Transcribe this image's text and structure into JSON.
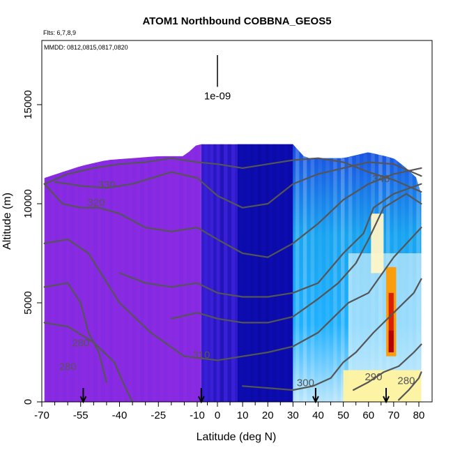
{
  "chart_data": {
    "type": "heatmap",
    "title": "ATOM1 Northbound COBBNA_GEOS5",
    "flights_label": "Flts: 6,7,8,9",
    "dates_label": "MMDD: 0812,0815,0817,0820",
    "xlabel": "Latitude (deg N)",
    "ylabel": "Altitude (m)",
    "xlim": [
      -70,
      82
    ],
    "ylim": [
      0,
      18200
    ],
    "x_scale": "piecewise-linear",
    "x_ticks": [
      {
        "value": -70,
        "label": "-70"
      },
      {
        "value": -55,
        "label": "-55"
      },
      {
        "value": -40,
        "label": "-40"
      },
      {
        "value": -25,
        "label": "-25"
      },
      {
        "value": -10,
        "label": "-10"
      },
      {
        "value": 0,
        "label": "0"
      },
      {
        "value": 10,
        "label": "10"
      },
      {
        "value": 20,
        "label": "20"
      },
      {
        "value": 30,
        "label": "30"
      },
      {
        "value": 40,
        "label": "40"
      },
      {
        "value": 50,
        "label": "50"
      },
      {
        "value": 60,
        "label": "60"
      },
      {
        "value": 70,
        "label": "70"
      },
      {
        "value": 80,
        "label": "80"
      }
    ],
    "y_ticks": [
      {
        "value": 0,
        "label": "0"
      },
      {
        "value": 5000,
        "label": "5000"
      },
      {
        "value": 10000,
        "label": "10000"
      },
      {
        "value": 15000,
        "label": "15000"
      }
    ],
    "scale_bar": {
      "label": "1e-09",
      "x": 0,
      "y_bottom": 15900,
      "y_top": 17500
    },
    "data_ceiling": [
      [
        -69,
        11300
      ],
      [
        -62,
        11600
      ],
      [
        -55,
        11900
      ],
      [
        -45,
        12200
      ],
      [
        -25,
        12400
      ],
      [
        -15,
        12400
      ],
      [
        -10,
        13000
      ],
      [
        0,
        13000
      ],
      [
        10,
        13000
      ],
      [
        20,
        13000
      ],
      [
        30,
        13000
      ],
      [
        35,
        12300
      ],
      [
        50,
        12300
      ],
      [
        60,
        12600
      ],
      [
        70,
        12300
      ],
      [
        75,
        11800
      ],
      [
        80,
        11200
      ],
      [
        81,
        10500
      ]
    ],
    "regions": [
      {
        "name": "southern",
        "from": -69,
        "to": -8,
        "color": "#8a2be2"
      },
      {
        "name": "tropical",
        "from": -8,
        "to": 30,
        "color": "#3a1fd8"
      },
      {
        "name": "tropical-core",
        "from": 8,
        "to": 30,
        "color": "#0c0cb0"
      },
      {
        "name": "northern",
        "from": 30,
        "to": 81,
        "color": "#1aa0ee"
      }
    ],
    "features": [
      {
        "name": "north-pale",
        "x": [
          52,
          81
        ],
        "y": [
          0,
          7500
        ],
        "color": "#cdeefb"
      },
      {
        "name": "near-surface-yellow",
        "x": [
          50,
          81
        ],
        "y": [
          0,
          1600
        ],
        "color": "#fff3a0"
      },
      {
        "name": "upper-pale-patch",
        "x": [
          61,
          66
        ],
        "y": [
          6500,
          9500
        ],
        "color": "#fff6c8"
      },
      {
        "name": "plume-orange",
        "x": [
          67,
          71
        ],
        "y": [
          2300,
          6800
        ],
        "color": "#ff9a00"
      },
      {
        "name": "plume-red",
        "x": [
          68,
          70
        ],
        "y": [
          2500,
          5500
        ],
        "color": "#d61a00"
      },
      {
        "name": "plume-core",
        "x": [
          68,
          70
        ],
        "y": [
          2500,
          3600
        ],
        "color": "#b00000"
      }
    ],
    "contours": [
      {
        "level": "280",
        "label": "280",
        "label_at": [
          -55,
          1600
        ],
        "points": [
          [
            -69,
            4000
          ],
          [
            -60,
            3800
          ],
          [
            -50,
            3000
          ],
          [
            -42,
            2000
          ],
          [
            -38,
            800
          ],
          [
            -35,
            0
          ]
        ]
      },
      {
        "level": "280",
        "label": "280",
        "label_at": [
          -60,
          4000
        ],
        "points": [
          [
            -69,
            5800
          ],
          [
            -60,
            6000
          ],
          [
            -55,
            5000
          ],
          [
            -52,
            3500
          ],
          [
            -48,
            2500
          ],
          [
            -45,
            1000
          ]
        ]
      },
      {
        "level": "310",
        "label": "310",
        "label_at": [
          -8,
          2300
        ],
        "points": [
          [
            -69,
            8000
          ],
          [
            -60,
            8200
          ],
          [
            -52,
            7500
          ],
          [
            -40,
            5000
          ],
          [
            -28,
            3500
          ],
          [
            -15,
            2300
          ],
          [
            0,
            2100
          ],
          [
            10,
            2300
          ],
          [
            20,
            2500
          ],
          [
            30,
            2800
          ],
          [
            40,
            3500
          ],
          [
            48,
            4500
          ],
          [
            52,
            5000
          ],
          [
            60,
            5500
          ],
          [
            70,
            7300
          ],
          [
            81,
            8800
          ]
        ]
      },
      {
        "level": "300",
        "label": "300",
        "label_at": [
          35,
          800
        ],
        "points": [
          [
            -20,
            4200
          ],
          [
            -10,
            4500
          ],
          [
            0,
            4200
          ],
          [
            10,
            4000
          ],
          [
            20,
            4000
          ],
          [
            30,
            4300
          ],
          [
            40,
            5200
          ],
          [
            48,
            6000
          ],
          [
            55,
            7000
          ],
          [
            60,
            8200
          ],
          [
            66,
            9800
          ],
          [
            75,
            10500
          ],
          [
            81,
            10000
          ]
        ]
      },
      {
        "level": "300",
        "label": "300",
        "label_at": [
          35,
          800
        ],
        "points": [
          [
            -40,
            6500
          ],
          [
            -30,
            6000
          ],
          [
            -20,
            5800
          ],
          [
            -10,
            6000
          ],
          [
            0,
            5500
          ],
          [
            10,
            5300
          ],
          [
            20,
            5300
          ],
          [
            30,
            5500
          ],
          [
            40,
            6000
          ],
          [
            50,
            7500
          ],
          [
            58,
            8500
          ],
          [
            62,
            9800
          ],
          [
            70,
            10500
          ],
          [
            81,
            11000
          ]
        ]
      },
      {
        "level": "300",
        "label": "300",
        "label_at": [
          35,
          800
        ],
        "points": [
          [
            10,
            800
          ],
          [
            20,
            700
          ],
          [
            30,
            600
          ],
          [
            38,
            800
          ],
          [
            45,
            1200
          ],
          [
            50,
            2000
          ],
          [
            55,
            2500
          ],
          [
            62,
            3500
          ],
          [
            70,
            4500
          ],
          [
            78,
            5500
          ],
          [
            81,
            6200
          ]
        ]
      },
      {
        "level": "290",
        "label": "290",
        "label_at": [
          62,
          1100
        ],
        "points": [
          [
            54,
            600
          ],
          [
            60,
            1000
          ],
          [
            66,
            1500
          ],
          [
            72,
            1800
          ],
          [
            78,
            2500
          ],
          [
            81,
            2900
          ]
        ]
      },
      {
        "level": "280",
        "label": "280",
        "label_at": [
          75,
          800
        ],
        "points": [
          [
            72,
            100
          ],
          [
            76,
            600
          ],
          [
            80,
            1200
          ],
          [
            81,
            1500
          ]
        ]
      },
      {
        "level": "320",
        "label": "320",
        "label_at": [
          -48,
          9800
        ],
        "points": [
          [
            -69,
            11000
          ],
          [
            -62,
            10000
          ],
          [
            -55,
            9800
          ],
          [
            -48,
            9800
          ],
          [
            -40,
            9500
          ],
          [
            -30,
            8800
          ],
          [
            -20,
            8600
          ],
          [
            -10,
            8800
          ],
          [
            0,
            8200
          ],
          [
            10,
            7500
          ],
          [
            20,
            7300
          ],
          [
            30,
            8000
          ],
          [
            40,
            9000
          ],
          [
            50,
            10200
          ],
          [
            60,
            11000
          ],
          [
            70,
            11500
          ],
          [
            81,
            11800
          ]
        ]
      },
      {
        "level": "330",
        "label": "330",
        "label_at": [
          -45,
          10800
        ],
        "points": [
          [
            -65,
            11100
          ],
          [
            -55,
            10900
          ],
          [
            -45,
            10800
          ],
          [
            -35,
            11000
          ],
          [
            -20,
            11600
          ],
          [
            -10,
            11300
          ],
          [
            0,
            10400
          ],
          [
            10,
            9800
          ],
          [
            20,
            10000
          ],
          [
            30,
            11000
          ],
          [
            40,
            11500
          ],
          [
            50,
            11800
          ],
          [
            60,
            12100
          ],
          [
            70,
            12000
          ],
          [
            81,
            11400
          ]
        ]
      },
      {
        "level": "340",
        "label": "340",
        "label_at": [
          65,
          11100
        ],
        "points": [
          [
            -69,
            11000
          ],
          [
            -60,
            11500
          ],
          [
            -50,
            11800
          ],
          [
            -40,
            12000
          ],
          [
            -30,
            12100
          ],
          [
            -20,
            12300
          ],
          [
            -10,
            12100
          ],
          [
            0,
            12000
          ],
          [
            10,
            11800
          ],
          [
            20,
            12000
          ],
          [
            30,
            12200
          ],
          [
            40,
            12300
          ],
          [
            50,
            12100
          ],
          [
            60,
            11600
          ],
          [
            70,
            11200
          ],
          [
            81,
            10600
          ]
        ]
      }
    ],
    "contour_labels": [
      {
        "text": "330",
        "x": -45,
        "y": 10800
      },
      {
        "text": "320",
        "x": -49,
        "y": 9900
      },
      {
        "text": "340",
        "x": 65,
        "y": 11100
      },
      {
        "text": "280",
        "x": -55,
        "y": 2800
      },
      {
        "text": "280",
        "x": -60,
        "y": 1600
      },
      {
        "text": "310",
        "x": -8,
        "y": 2200
      },
      {
        "text": "300",
        "x": 35,
        "y": 800
      },
      {
        "text": "290",
        "x": 62,
        "y": 1100
      },
      {
        "text": "280",
        "x": 75,
        "y": 900
      }
    ],
    "arrows_at": [
      -54,
      -8,
      39,
      67
    ],
    "grid": false,
    "legend": "none"
  }
}
